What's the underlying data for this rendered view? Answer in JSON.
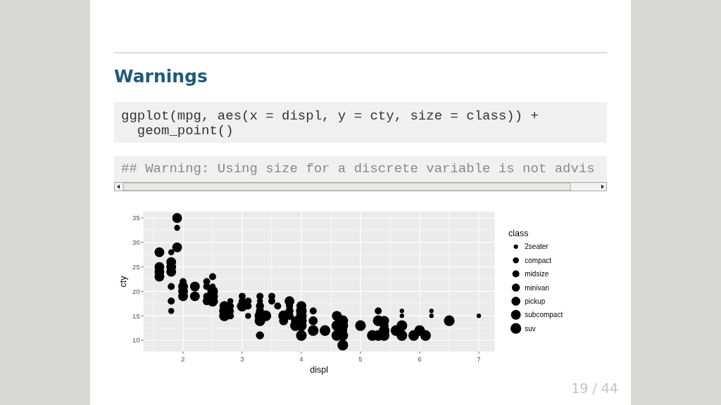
{
  "chart_data": {
    "type": "bubble",
    "title": "Warnings",
    "annotations": [
      "ggplot(mpg, aes(x = displ, y = cty, size = class)) +",
      "  geom_point()",
      "## Warning: Using size for a discrete variable is not advis",
      "19 / 44"
    ],
    "xlabel": "displ",
    "ylabel": "cty",
    "legend_title": "class",
    "xlim": [
      1.33,
      7.27
    ],
    "ylim": [
      7.7,
      36.3
    ],
    "xticks": [
      2,
      3,
      4,
      5,
      6,
      7
    ],
    "yticks": [
      10,
      15,
      20,
      25,
      30,
      35
    ],
    "grid": true,
    "legend": "right",
    "marker": "circle",
    "series": [
      {
        "name": "2seater",
        "color": "#000000",
        "x": [
          7.0,
          5.7,
          5.7,
          6.2,
          6.2
        ],
        "values": [
          15,
          16,
          15,
          16,
          15
        ],
        "sizes": [
          0.17,
          0.17,
          0.17,
          0.17,
          0.17
        ]
      },
      {
        "name": "compact",
        "color": "#000000",
        "x": [
          1.8,
          1.8,
          1.9,
          2.5,
          2.8,
          3.1,
          3.3
        ],
        "values": [
          16,
          28,
          33,
          21,
          18,
          15,
          18
        ],
        "sizes": [
          0.31,
          0.31,
          0.31,
          0.31,
          0.31,
          0.31,
          0.31
        ]
      },
      {
        "name": "midsize",
        "color": "#000000",
        "x": [
          5.3,
          4.2,
          1.8,
          1.8,
          2.0,
          2.4,
          2.4,
          2.4,
          2.5,
          2.8,
          2.8,
          2.8,
          3.0,
          3.0,
          3.1,
          3.1,
          3.3,
          3.5,
          3.5,
          3.6,
          3.8
        ],
        "values": [
          16,
          16,
          18,
          21,
          22,
          19,
          21,
          22,
          23,
          15,
          16,
          17,
          18,
          19,
          17,
          18,
          19,
          18,
          19,
          17,
          17
        ],
        "sizes": [
          0.43,
          0.43,
          0.43,
          0.43,
          0.43,
          0.43,
          0.43,
          0.43,
          0.43,
          0.43,
          0.43,
          0.43,
          0.43,
          0.43,
          0.43,
          0.43,
          0.43,
          0.43,
          0.43,
          0.43,
          0.43
        ]
      },
      {
        "name": "minivan",
        "color": "#000000",
        "x": [
          3.3,
          2.4,
          3.3,
          3.3,
          3.8,
          3.8
        ],
        "values": [
          11,
          18,
          16,
          17,
          15,
          16
        ],
        "sizes": [
          0.57,
          0.57,
          0.57,
          0.57,
          0.57,
          0.57
        ]
      },
      {
        "name": "pickup",
        "color": "#000000",
        "x": [
          4.7,
          3.7,
          3.9,
          4.2,
          5.4
        ],
        "values": [
          12,
          14,
          14,
          14,
          13
        ],
        "sizes": [
          0.69,
          0.69,
          0.69,
          0.69,
          0.69
        ]
      },
      {
        "name": "subcompact",
        "color": "#000000",
        "x": [
          1.9,
          1.6,
          1.6,
          1.6,
          1.6,
          1.8,
          1.8,
          1.8,
          1.9,
          2.0,
          2.0,
          2.0,
          2.2,
          2.2,
          2.7,
          3.8,
          4.0,
          4.6,
          5.4
        ],
        "values": [
          35,
          23,
          24,
          25,
          28,
          24,
          25,
          26,
          29,
          19,
          20,
          21,
          19,
          21,
          17,
          18,
          17,
          15,
          14
        ],
        "sizes": [
          0.84,
          0.84,
          0.84,
          0.84,
          0.84,
          0.84,
          0.84,
          0.84,
          0.84,
          0.84,
          0.84,
          0.84,
          0.84,
          0.84,
          0.84,
          0.84,
          0.84,
          0.84,
          0.84
        ]
      },
      {
        "name": "suv",
        "color": "#000000",
        "x": [
          6.5,
          2.5,
          2.5,
          2.5,
          2.7,
          2.7,
          3.0,
          3.3,
          3.3,
          3.4,
          3.7,
          3.9,
          4.0,
          4.0,
          4.0,
          4.0,
          4.0,
          4.2,
          4.4,
          4.6,
          4.6,
          4.7,
          4.7,
          4.7,
          4.7,
          5.0,
          5.2,
          5.3,
          5.3,
          5.4,
          5.4,
          5.6,
          5.7,
          5.7,
          5.9,
          6.0,
          6.1
        ],
        "values": [
          14,
          18,
          19,
          20,
          15,
          16,
          17,
          14,
          15,
          15,
          15,
          13,
          11,
          13,
          14,
          15,
          16,
          12,
          12,
          11,
          13,
          9,
          11,
          13,
          14,
          13,
          11,
          11,
          14,
          11,
          12,
          12,
          11,
          13,
          11,
          12,
          11
        ],
        "sizes": [
          1,
          1,
          1,
          1,
          1,
          1,
          1,
          1,
          1,
          1,
          1,
          1,
          1,
          1,
          1,
          1,
          1,
          1,
          1,
          1,
          1,
          1,
          1,
          1,
          1,
          1,
          1,
          1,
          1,
          1,
          1,
          1,
          1,
          1,
          1,
          1,
          1
        ]
      }
    ]
  }
}
